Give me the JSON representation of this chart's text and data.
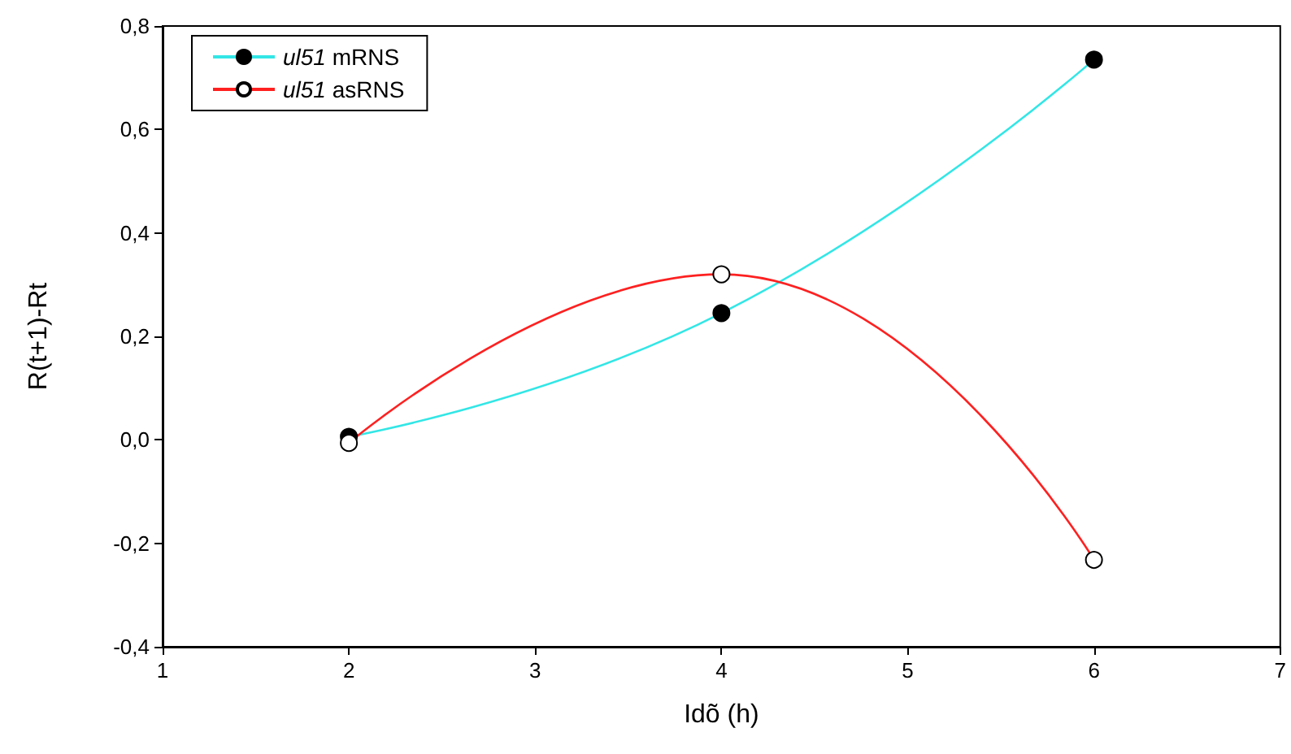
{
  "chart_data": {
    "type": "line",
    "xlabel": "Idõ (h)",
    "ylabel": "R(t+1)-Rt",
    "x": [
      2,
      4,
      6
    ],
    "series": [
      {
        "name": "ul51 mRNS",
        "color": "#33e6e6",
        "values": [
          0.006,
          0.245,
          0.735
        ]
      },
      {
        "name": "ul51 asRNS",
        "color": "#ff2020",
        "values": [
          -0.006,
          0.32,
          -0.232
        ]
      }
    ],
    "xlim": [
      1,
      7
    ],
    "xticks": [
      1,
      2,
      3,
      4,
      5,
      6,
      7
    ],
    "ylim": [
      -0.4,
      0.8
    ],
    "yticks": [
      {
        "value": -0.4,
        "label": "-0,4"
      },
      {
        "value": -0.2,
        "label": "-0,2"
      },
      {
        "value": 0,
        "label": "0,0"
      },
      {
        "value": 0.2,
        "label": "0,2"
      },
      {
        "value": 0.4,
        "label": "0,4"
      },
      {
        "value": 0.6,
        "label": "0,6"
      },
      {
        "value": 0.8,
        "label": "0,8"
      }
    ],
    "grid": false,
    "legend": "top left",
    "marker": "circle",
    "line_style": "solid"
  }
}
